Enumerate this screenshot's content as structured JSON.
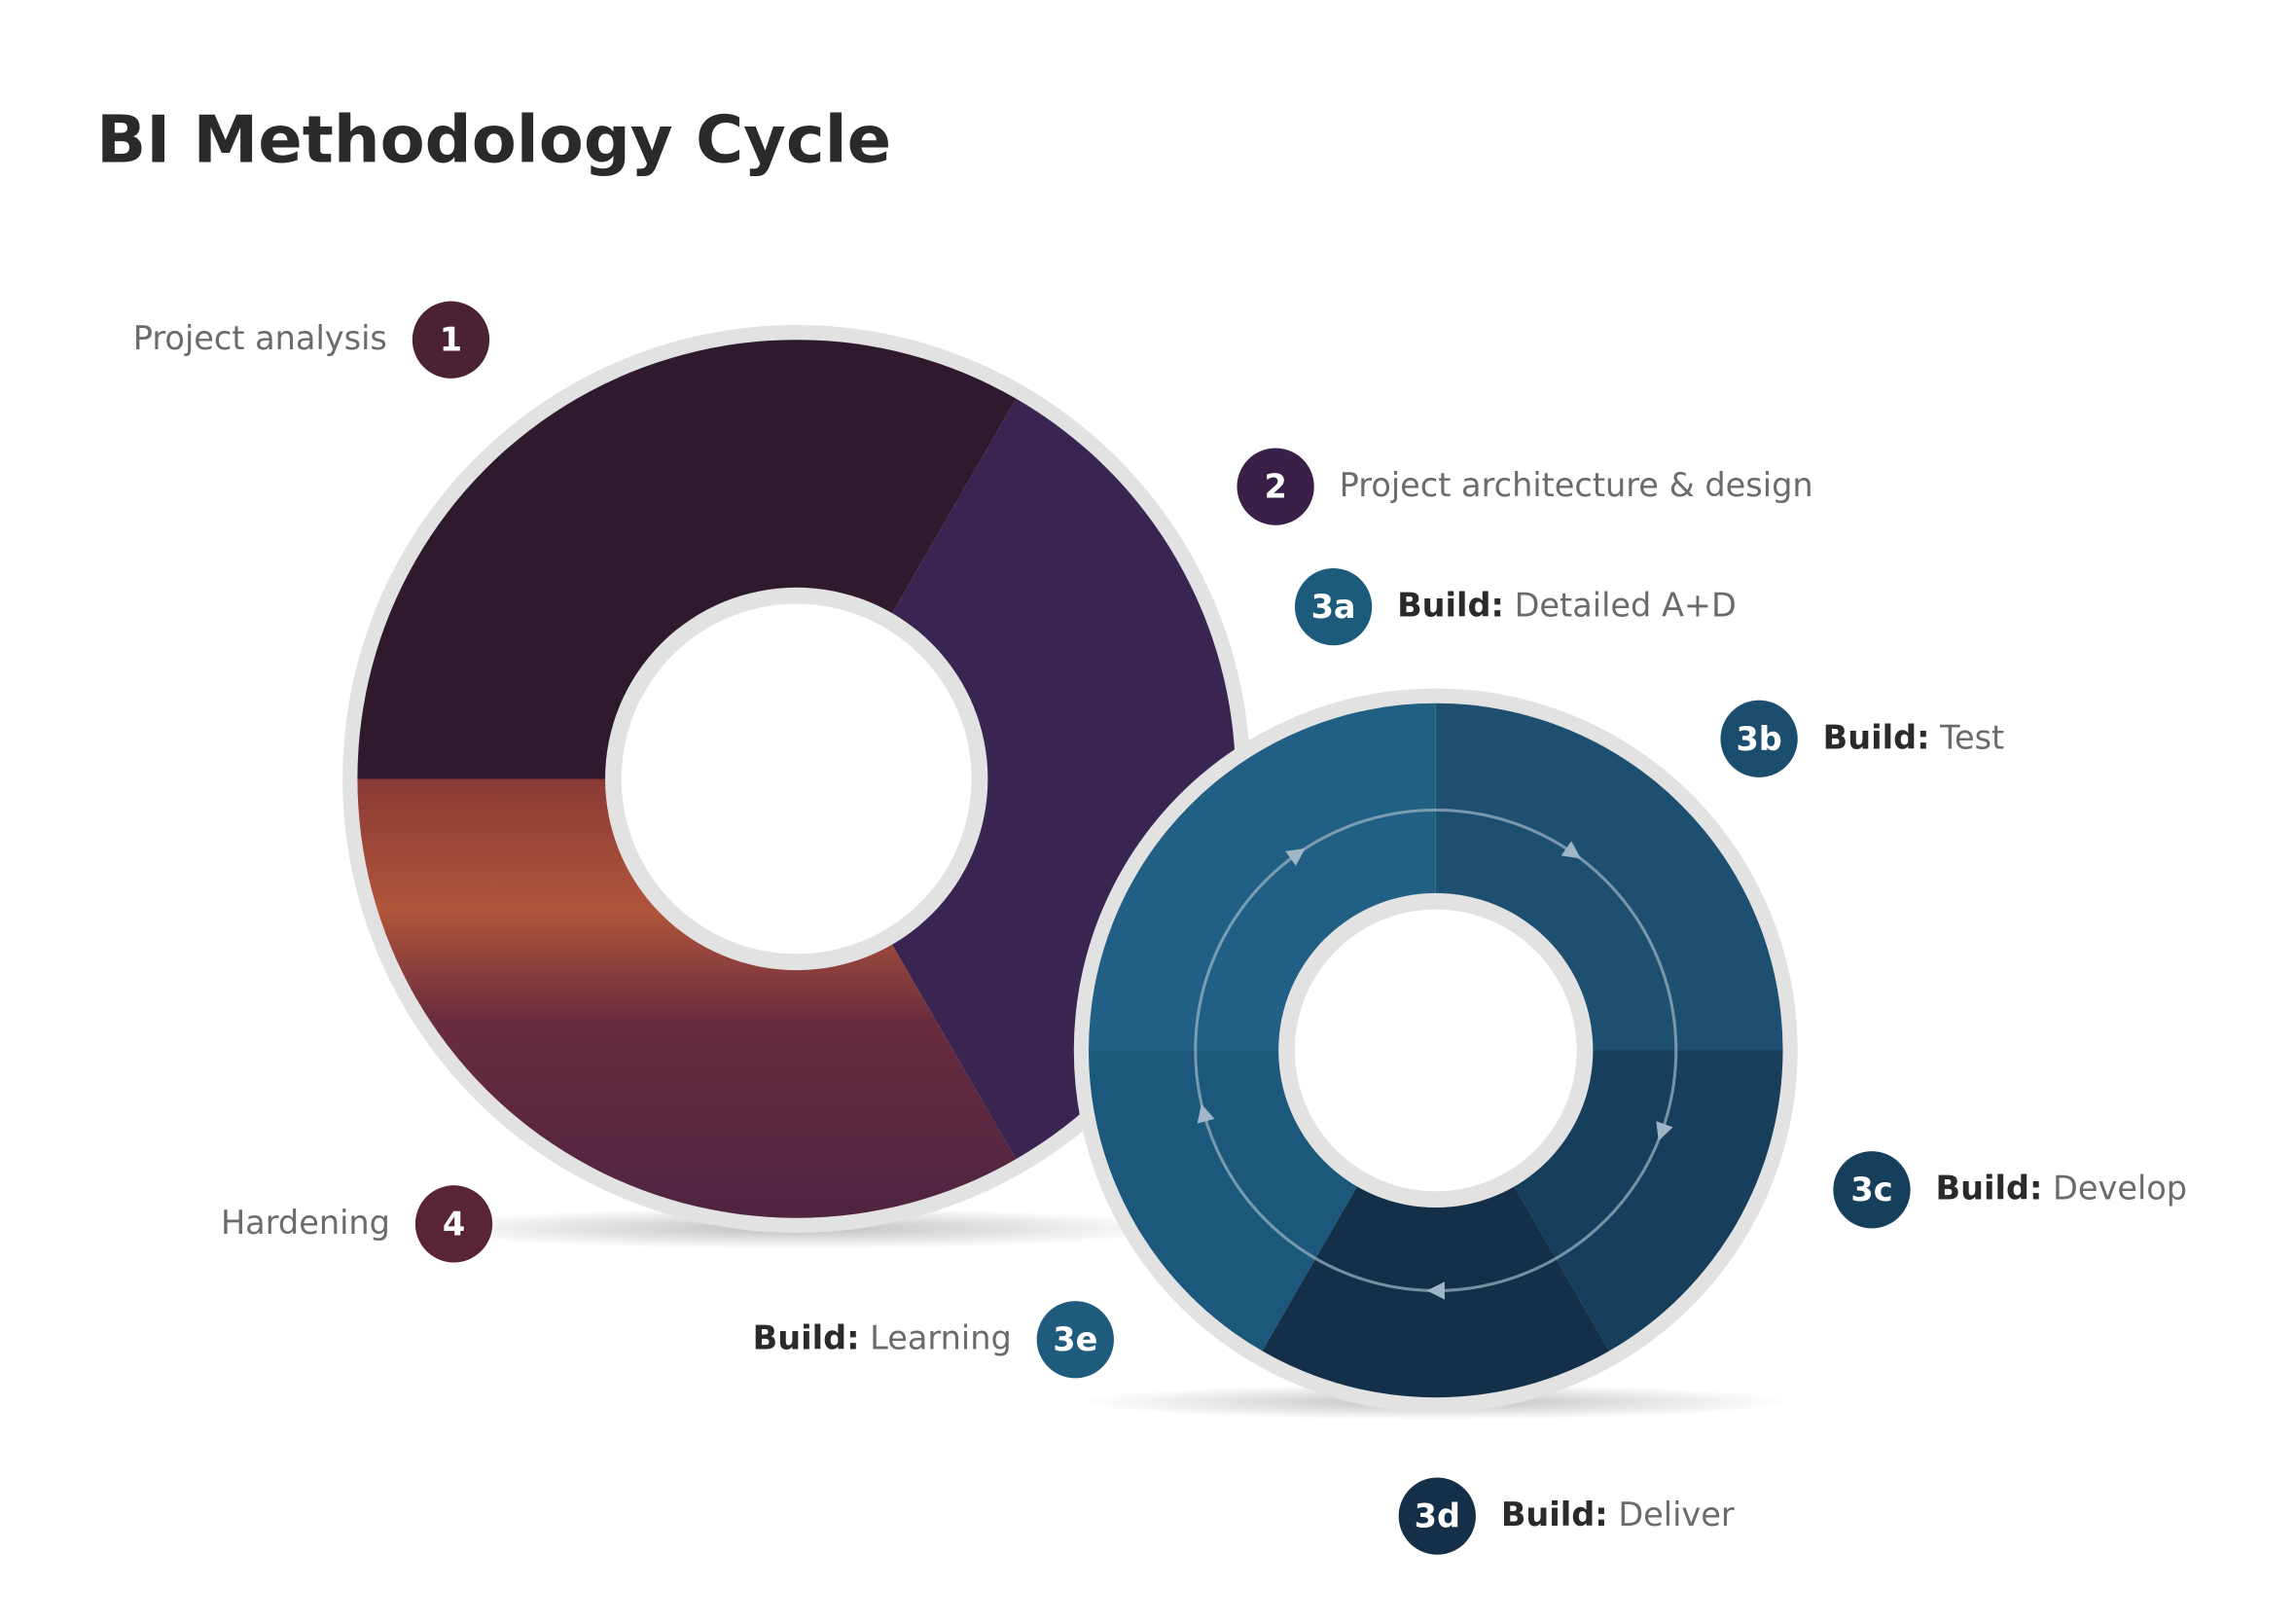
{
  "header": {
    "title": "BI Methodology Cycle"
  },
  "steps": [
    {
      "badge": "1",
      "label": "Project analysis"
    },
    {
      "badge": "2",
      "label": "Project architecture & design"
    },
    {
      "badge": "3a",
      "prefix": "Build:",
      "label": "Detailed A+D"
    },
    {
      "badge": "3b",
      "prefix": "Build:",
      "label": "Test"
    },
    {
      "badge": "3c",
      "prefix": "Build:",
      "label": "Develop"
    },
    {
      "badge": "3d",
      "prefix": "Build:",
      "label": "Deliver"
    },
    {
      "badge": "3e",
      "prefix": "Build:",
      "label": "Learning"
    },
    {
      "badge": "4",
      "label": "Hardening"
    }
  ]
}
